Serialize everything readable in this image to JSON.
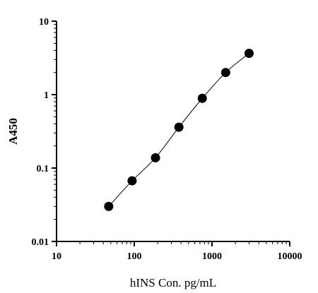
{
  "chart_data": {
    "type": "scatter",
    "title": "",
    "xlabel": "hINS Con. pg/mL",
    "ylabel": "A450",
    "xscale": "log",
    "yscale": "log",
    "xlim": [
      10,
      10000
    ],
    "ylim": [
      0.01,
      10
    ],
    "x_ticks": [
      "10",
      "100",
      "1000",
      "10000"
    ],
    "y_ticks": [
      "0.01",
      "0.1",
      "1",
      "10"
    ],
    "grid": false,
    "legend": "none",
    "series": [
      {
        "x": [
          46.9,
          93.75,
          187.5,
          375,
          750,
          1500,
          3000
        ],
        "y": [
          0.03,
          0.067,
          0.138,
          0.36,
          0.89,
          2.0,
          3.65
        ],
        "marker": "filled-circle",
        "line": "smooth-fit",
        "color": "#000000"
      }
    ]
  }
}
